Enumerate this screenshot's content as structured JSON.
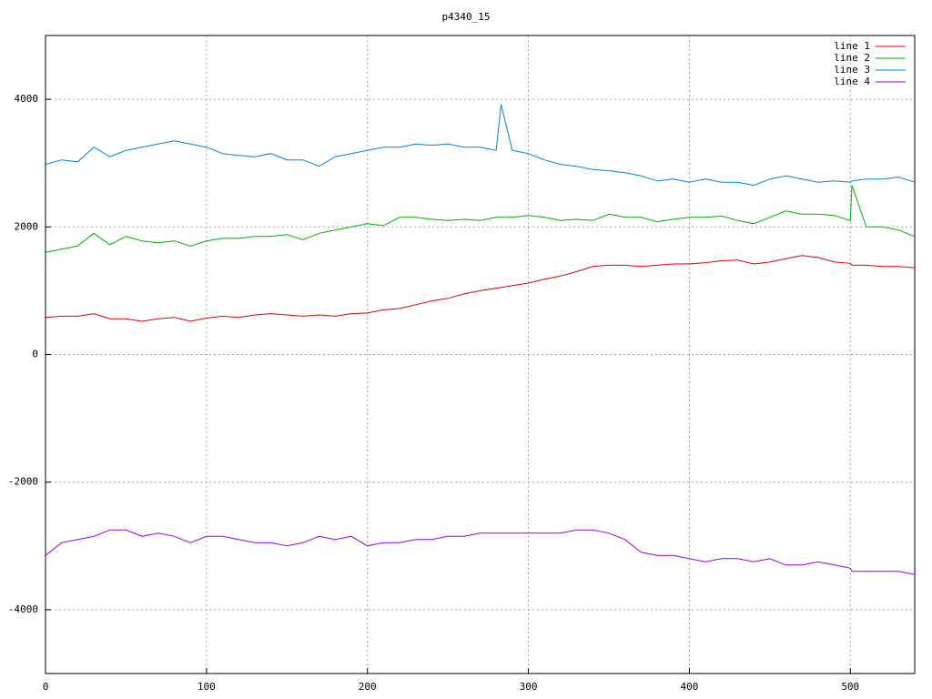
{
  "chart_data": {
    "type": "line",
    "title": "p4340_15",
    "x": [
      0,
      10,
      20,
      30,
      40,
      50,
      60,
      70,
      80,
      90,
      100,
      110,
      120,
      130,
      140,
      150,
      160,
      170,
      180,
      190,
      200,
      210,
      220,
      230,
      240,
      250,
      260,
      270,
      280,
      283,
      290,
      300,
      310,
      320,
      330,
      340,
      350,
      360,
      370,
      380,
      390,
      400,
      410,
      420,
      430,
      440,
      450,
      460,
      470,
      480,
      490,
      500,
      501,
      510,
      520,
      530,
      540
    ],
    "series": [
      {
        "name": "line 1",
        "color": "#e00000",
        "values": [
          580,
          600,
          600,
          640,
          560,
          560,
          520,
          560,
          580,
          520,
          570,
          600,
          580,
          620,
          640,
          620,
          600,
          620,
          600,
          640,
          650,
          700,
          720,
          780,
          840,
          880,
          950,
          1000,
          1040,
          1050,
          1080,
          1120,
          1180,
          1230,
          1300,
          1380,
          1400,
          1400,
          1380,
          1400,
          1420,
          1420,
          1440,
          1470,
          1480,
          1420,
          1450,
          1500,
          1550,
          1520,
          1450,
          1430,
          1400,
          1400,
          1380,
          1380,
          1360
        ]
      },
      {
        "name": "line 2",
        "color": "#00b000",
        "values": [
          1600,
          1650,
          1700,
          1900,
          1720,
          1850,
          1780,
          1750,
          1780,
          1700,
          1780,
          1820,
          1820,
          1850,
          1850,
          1880,
          1800,
          1900,
          1950,
          2000,
          2050,
          2020,
          2150,
          2150,
          2120,
          2100,
          2120,
          2100,
          2150,
          2150,
          2150,
          2180,
          2150,
          2100,
          2120,
          2100,
          2200,
          2150,
          2150,
          2080,
          2120,
          2150,
          2150,
          2170,
          2100,
          2050,
          2150,
          2250,
          2200,
          2200,
          2180,
          2100,
          2650,
          2000,
          2000,
          1950,
          1850
        ]
      },
      {
        "name": "line 3",
        "color": "#0080e0",
        "values": [
          2980,
          3050,
          3020,
          3250,
          3100,
          3200,
          3250,
          3300,
          3350,
          3300,
          3250,
          3150,
          3120,
          3100,
          3150,
          3050,
          3050,
          2950,
          3100,
          3150,
          3200,
          3250,
          3250,
          3300,
          3280,
          3300,
          3250,
          3250,
          3200,
          3920,
          3200,
          3150,
          3050,
          2980,
          2950,
          2900,
          2880,
          2850,
          2800,
          2720,
          2750,
          2700,
          2750,
          2700,
          2700,
          2650,
          2750,
          2800,
          2750,
          2700,
          2720,
          2700,
          2720,
          2750,
          2750,
          2780,
          2700
        ]
      },
      {
        "name": "line 4",
        "color": "#a000e0",
        "values": [
          -3150,
          -2950,
          -2900,
          -2850,
          -2750,
          -2750,
          -2850,
          -2800,
          -2850,
          -2950,
          -2850,
          -2850,
          -2900,
          -2950,
          -2950,
          -3000,
          -2950,
          -2850,
          -2900,
          -2850,
          -3000,
          -2950,
          -2950,
          -2900,
          -2900,
          -2850,
          -2850,
          -2800,
          -2800,
          -2800,
          -2800,
          -2800,
          -2800,
          -2800,
          -2750,
          -2750,
          -2800,
          -2900,
          -3100,
          -3150,
          -3150,
          -3200,
          -3250,
          -3200,
          -3200,
          -3250,
          -3200,
          -3300,
          -3300,
          -3250,
          -3300,
          -3350,
          -3400,
          -3400,
          -3400,
          -3400,
          -3450
        ]
      }
    ],
    "xlim": [
      0,
      540
    ],
    "xticks": [
      0,
      100,
      200,
      300,
      400,
      500
    ],
    "ylim": [
      -5000,
      5000
    ],
    "yticks": [
      -4000,
      -2000,
      0,
      2000,
      4000
    ],
    "grid": true,
    "legend": "top-right"
  }
}
